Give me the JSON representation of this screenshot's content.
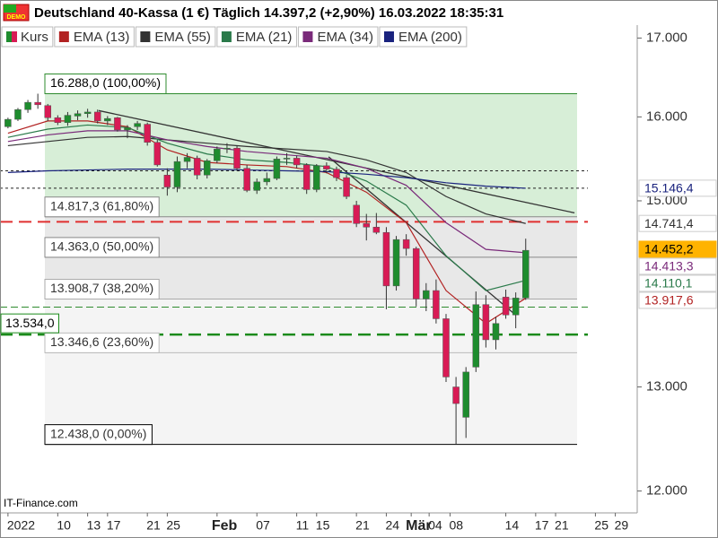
{
  "title": "Deutschland 40-Kassa (1 €) Täglich 14.397,2 (+2,90%) 16.03.2022 18:35:31",
  "badge": "DEMO",
  "watermark": "IT-Finance.com",
  "chart_data": {
    "type": "candlestick",
    "log_scale": true,
    "xlim": [
      -0.8,
      63.2
    ],
    "ylim": [
      11800,
      17170
    ],
    "yticks": [
      {
        "value": 12000,
        "label": "12.000"
      },
      {
        "value": 13000,
        "label": "13.000"
      },
      {
        "value": 15000,
        "label": "15.000"
      },
      {
        "value": 16000,
        "label": "16.000"
      },
      {
        "value": 17000,
        "label": "17.000"
      }
    ],
    "xticks": [
      {
        "value": 0,
        "label": "2022"
      },
      {
        "value": 5,
        "label": "10"
      },
      {
        "value": 8,
        "label": "13"
      },
      {
        "value": 10,
        "label": "17"
      },
      {
        "value": 14,
        "label": "21"
      },
      {
        "value": 16,
        "label": "25"
      },
      {
        "value": 21,
        "label": "Feb"
      },
      {
        "value": 25,
        "label": "07"
      },
      {
        "value": 29,
        "label": "11"
      },
      {
        "value": 31,
        "label": "15"
      },
      {
        "value": 35,
        "label": "21"
      },
      {
        "value": 38,
        "label": "24"
      },
      {
        "value": 40.5,
        "label": "Mär"
      },
      {
        "value": 42.3,
        "label": "04"
      },
      {
        "value": 44.4,
        "label": "08"
      },
      {
        "value": 50,
        "label": "14"
      },
      {
        "value": 53,
        "label": "17"
      },
      {
        "value": 55,
        "label": "21"
      },
      {
        "value": 59,
        "label": "25"
      },
      {
        "value": 61,
        "label": "29"
      }
    ],
    "candles": {
      "name": "Kurs",
      "up_color": "#1e8c2e",
      "down_color": "#d81b55",
      "open": [
        15880,
        15970,
        16090,
        16180,
        16140,
        15990,
        15930,
        16010,
        16040,
        16060,
        15950,
        15990,
        15840,
        15880,
        15910,
        15690,
        15300,
        15160,
        15460,
        15500,
        15300,
        15470,
        15610,
        15620,
        15380,
        15120,
        15220,
        15260,
        15490,
        15500,
        15420,
        15130,
        15410,
        15370,
        15270,
        14950,
        14740,
        14700,
        14640,
        14050,
        14560,
        14460,
        13910,
        14000,
        13700,
        13000,
        12700,
        13200,
        13850,
        13480,
        13930,
        13740,
        13920
      ],
      "high": [
        15990,
        16110,
        16210,
        16288,
        16160,
        16020,
        16060,
        16080,
        16100,
        16090,
        16010,
        16000,
        15900,
        15950,
        15930,
        15720,
        15380,
        15520,
        15560,
        15530,
        15490,
        15640,
        15680,
        15650,
        15420,
        15260,
        15330,
        15520,
        15560,
        15530,
        15440,
        15430,
        15450,
        15400,
        15300,
        15000,
        14850,
        14860,
        14700,
        14600,
        14620,
        14480,
        14080,
        14120,
        13750,
        13100,
        13200,
        13990,
        13950,
        13720,
        14010,
        13980,
        14570
      ],
      "low": [
        15860,
        15950,
        16050,
        16100,
        15950,
        15900,
        15890,
        15960,
        15990,
        15920,
        15900,
        15820,
        15740,
        15840,
        15650,
        15400,
        15060,
        15100,
        15380,
        15250,
        15260,
        15440,
        15560,
        15350,
        15100,
        15080,
        15180,
        15240,
        15420,
        15380,
        15080,
        15100,
        15320,
        15230,
        15020,
        14700,
        14550,
        14620,
        13800,
        14000,
        14380,
        13830,
        13780,
        13650,
        13050,
        12438,
        12500,
        13150,
        13400,
        13380,
        13700,
        13600,
        13900
      ],
      "close": [
        15970,
        16090,
        16180,
        16150,
        15990,
        15930,
        16020,
        16040,
        16060,
        15950,
        15980,
        15840,
        15870,
        15920,
        15690,
        15420,
        15160,
        15460,
        15510,
        15300,
        15470,
        15610,
        15620,
        15380,
        15120,
        15220,
        15260,
        15490,
        15500,
        15420,
        15130,
        15410,
        15370,
        15270,
        15050,
        14740,
        14700,
        14640,
        14050,
        14560,
        14460,
        13910,
        14000,
        13700,
        13100,
        12835,
        13150,
        13850,
        13480,
        13650,
        13740,
        13920,
        14440
      ]
    },
    "ema_x": [
      0,
      4,
      8,
      12,
      16,
      20,
      24,
      28,
      32,
      36,
      40,
      44,
      48,
      52
    ],
    "series": [
      {
        "name": "EMA (13)",
        "color": "#b22222",
        "values": [
          15800,
          15950,
          15950,
          15880,
          15600,
          15450,
          15420,
          15400,
          15330,
          15100,
          14750,
          14000,
          13650,
          13918
        ]
      },
      {
        "name": "EMA (55)",
        "color": "#333333",
        "values": [
          15650,
          15700,
          15750,
          15760,
          15720,
          15680,
          15640,
          15610,
          15580,
          15480,
          15330,
          15050,
          14850,
          14741
        ]
      },
      {
        "name": "EMA (21)",
        "color": "#2a7a4a",
        "values": [
          15750,
          15850,
          15900,
          15870,
          15680,
          15550,
          15480,
          15450,
          15400,
          15230,
          14950,
          14380,
          14000,
          14110
        ]
      },
      {
        "name": "EMA (34)",
        "color": "#7a2a7a",
        "values": [
          15700,
          15780,
          15830,
          15830,
          15720,
          15640,
          15580,
          15540,
          15500,
          15380,
          15180,
          14750,
          14450,
          14413
        ]
      },
      {
        "name": "EMA (200)",
        "color": "#1a237e",
        "values": [
          15330,
          15350,
          15360,
          15370,
          15370,
          15370,
          15360,
          15350,
          15340,
          15310,
          15270,
          15210,
          15170,
          15146
        ]
      }
    ],
    "trendlines": [
      {
        "color": "#333333",
        "x": [
          9.1,
          56.9
        ],
        "y": [
          16078,
          14862
        ]
      },
      {
        "color": "#333333",
        "x": [
          32.2,
          51
        ],
        "y": [
          15516,
          13739
        ]
      }
    ],
    "fib": [
      {
        "value": 16288,
        "label": "16.288,0 (100,00%)",
        "color": "#2e8b2e"
      },
      {
        "value": 14817.3,
        "label": "14.817,3 (61,80%)",
        "color": "#888888"
      },
      {
        "value": 14363,
        "label": "14.363,0 (50,00%)",
        "color": "#888888"
      },
      {
        "value": 13908.7,
        "label": "13.908,7 (38,20%)",
        "color": "#aaaaaa"
      },
      {
        "value": 13346.6,
        "label": "13.346,6 (23,60%)",
        "color": "#bbbbbb"
      },
      {
        "value": 12438,
        "label": "12.438,0 (0,00%)",
        "color": "#000000"
      }
    ],
    "fib_zone_colors": [
      "#d7eed7",
      "#e8e8e8",
      "#e8e8e8",
      "#f4f4f4",
      "#f4f4f4"
    ],
    "levels": [
      {
        "value": 15350,
        "color": "#222222",
        "style": "dotted"
      },
      {
        "value": 15146.4,
        "color": "#222222",
        "style": "dotted"
      },
      {
        "value": 14760,
        "color": "#e03030",
        "style": "dashed"
      },
      {
        "value": 13823,
        "color": "#2e8b2e",
        "style": "thin-dashed"
      },
      {
        "value": 13534,
        "color": "#1a8a1a",
        "style": "dashed",
        "label": "13.534,0"
      }
    ],
    "price_labels": [
      {
        "value": 15146.4,
        "label": "15.146,4",
        "color": "#1a237e",
        "fill": "#ffffff"
      },
      {
        "value": 14741.4,
        "label": "14.741,4",
        "color": "#333333",
        "fill": "#ffffff"
      },
      {
        "value": 14452.2,
        "label": "14.452,2",
        "color": "#000000",
        "fill": "#ffb300"
      },
      {
        "value": 14413.3,
        "label": "14.413,3",
        "color": "#7a2a7a",
        "fill": "#ffffff"
      },
      {
        "value": 14110.1,
        "label": "14.110,1",
        "color": "#2a7a4a",
        "fill": "#ffffff"
      },
      {
        "value": 13917.6,
        "label": "13.917,6",
        "color": "#b22222",
        "fill": "#ffffff"
      }
    ]
  }
}
